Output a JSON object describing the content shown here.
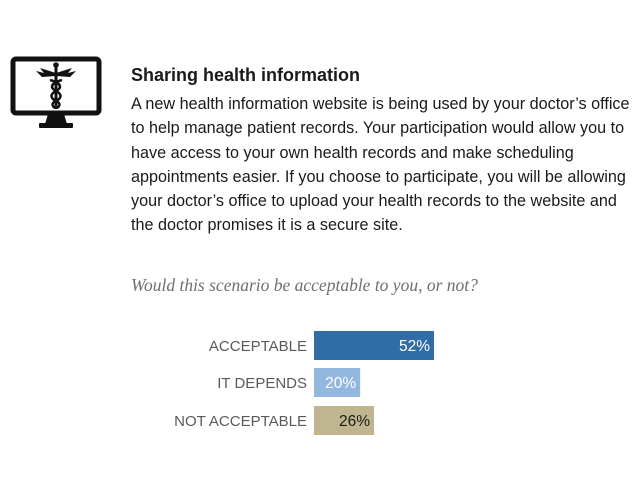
{
  "icon": "caduceus-monitor-icon",
  "card": {
    "title": "Sharing health information",
    "body": "A new health information website is being used by your doctor’s office to help manage patient records. Your participation would allow you to have access to your own health records and make scheduling appointments easier. If you choose to participate, you will be allowing your doctor’s office to upload your health records to the website and the doctor promises it is a secure site.",
    "question": "Would this scenario be acceptable to you, or not?"
  },
  "chart_data": {
    "type": "bar",
    "orientation": "horizontal",
    "categories": [
      "ACCEPTABLE",
      "IT DEPENDS",
      "NOT ACCEPTABLE"
    ],
    "values": [
      52,
      20,
      26
    ],
    "value_labels": [
      "52%",
      "20%",
      "26%"
    ],
    "colors": [
      "#2f6ca8",
      "#92b8df",
      "#bfb68f"
    ],
    "value_label_colors": [
      "#ffffff",
      "#ffffff",
      "#1a1a1a"
    ],
    "xlim": [
      0,
      100
    ],
    "grid": false,
    "legend": "none"
  }
}
